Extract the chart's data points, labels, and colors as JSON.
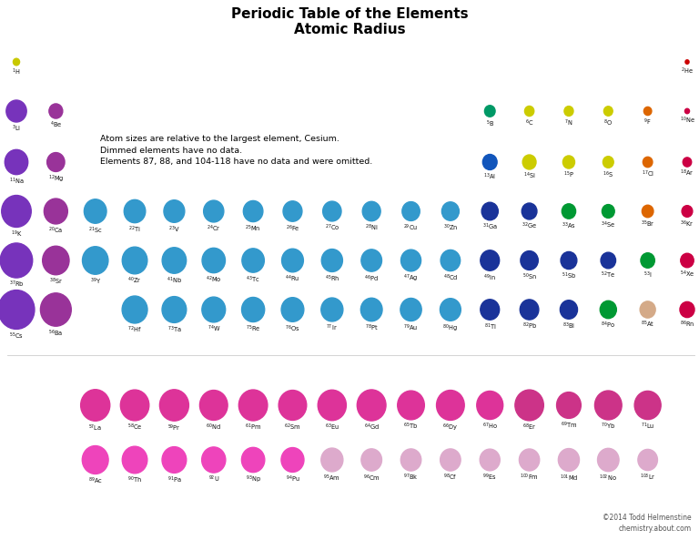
{
  "title1": "Periodic Table of the Elements",
  "title2": "Atomic Radius",
  "note": "Atom sizes are relative to the largest element, Cesium.\nDimmed elements have no data.\nElements 87, 88, and 104-118 have no data and were omitted.",
  "copyright": "©2014 Todd Helmenstine\nchemistry.about.com",
  "background": "#ffffff",
  "max_r": 298,
  "elements": [
    {
      "sym": "H",
      "num": 1,
      "row": 1,
      "col": 1,
      "r": 53,
      "color": "#c8c800"
    },
    {
      "sym": "He",
      "num": 2,
      "row": 1,
      "col": 18,
      "r": 31,
      "color": "#cc0000"
    },
    {
      "sym": "Li",
      "num": 3,
      "row": 2,
      "col": 1,
      "r": 167,
      "color": "#7733bb"
    },
    {
      "sym": "Be",
      "num": 4,
      "row": 2,
      "col": 2,
      "r": 112,
      "color": "#993399"
    },
    {
      "sym": "B",
      "num": 5,
      "row": 2,
      "col": 13,
      "r": 87,
      "color": "#009966"
    },
    {
      "sym": "C",
      "num": 6,
      "row": 2,
      "col": 14,
      "r": 77,
      "color": "#cccc00"
    },
    {
      "sym": "N",
      "num": 7,
      "row": 2,
      "col": 15,
      "r": 75,
      "color": "#cccc00"
    },
    {
      "sym": "O",
      "num": 8,
      "row": 2,
      "col": 16,
      "r": 73,
      "color": "#cccc00"
    },
    {
      "sym": "F",
      "num": 9,
      "row": 2,
      "col": 17,
      "r": 64,
      "color": "#dd6600"
    },
    {
      "sym": "Ne",
      "num": 10,
      "row": 2,
      "col": 18,
      "r": 38,
      "color": "#cc0044"
    },
    {
      "sym": "Na",
      "num": 11,
      "row": 3,
      "col": 1,
      "r": 190,
      "color": "#7733bb"
    },
    {
      "sym": "Mg",
      "num": 12,
      "row": 3,
      "col": 2,
      "r": 145,
      "color": "#993399"
    },
    {
      "sym": "Al",
      "num": 13,
      "row": 3,
      "col": 13,
      "r": 118,
      "color": "#1155bb"
    },
    {
      "sym": "Si",
      "num": 14,
      "row": 3,
      "col": 14,
      "r": 111,
      "color": "#cccc00"
    },
    {
      "sym": "P",
      "num": 15,
      "row": 3,
      "col": 15,
      "r": 98,
      "color": "#cccc00"
    },
    {
      "sym": "S",
      "num": 16,
      "row": 3,
      "col": 16,
      "r": 88,
      "color": "#cccc00"
    },
    {
      "sym": "Cl",
      "num": 17,
      "row": 3,
      "col": 17,
      "r": 79,
      "color": "#dd6600"
    },
    {
      "sym": "Ar",
      "num": 18,
      "row": 3,
      "col": 18,
      "r": 71,
      "color": "#cc0044"
    },
    {
      "sym": "K",
      "num": 19,
      "row": 4,
      "col": 1,
      "r": 243,
      "color": "#7733bb"
    },
    {
      "sym": "Ca",
      "num": 20,
      "row": 4,
      "col": 2,
      "r": 194,
      "color": "#993399"
    },
    {
      "sym": "Sc",
      "num": 21,
      "row": 4,
      "col": 3,
      "r": 184,
      "color": "#3399cc"
    },
    {
      "sym": "Ti",
      "num": 22,
      "row": 4,
      "col": 4,
      "r": 176,
      "color": "#3399cc"
    },
    {
      "sym": "V",
      "num": 23,
      "row": 4,
      "col": 5,
      "r": 171,
      "color": "#3399cc"
    },
    {
      "sym": "Cr",
      "num": 24,
      "row": 4,
      "col": 6,
      "r": 166,
      "color": "#3399cc"
    },
    {
      "sym": "Mn",
      "num": 25,
      "row": 4,
      "col": 7,
      "r": 161,
      "color": "#3399cc"
    },
    {
      "sym": "Fe",
      "num": 26,
      "row": 4,
      "col": 8,
      "r": 156,
      "color": "#3399cc"
    },
    {
      "sym": "Co",
      "num": 27,
      "row": 4,
      "col": 9,
      "r": 152,
      "color": "#3399cc"
    },
    {
      "sym": "Ni",
      "num": 28,
      "row": 4,
      "col": 10,
      "r": 149,
      "color": "#3399cc"
    },
    {
      "sym": "Cu",
      "num": 29,
      "row": 4,
      "col": 11,
      "r": 145,
      "color": "#3399cc"
    },
    {
      "sym": "Zn",
      "num": 30,
      "row": 4,
      "col": 12,
      "r": 142,
      "color": "#3399cc"
    },
    {
      "sym": "Ga",
      "num": 31,
      "row": 4,
      "col": 13,
      "r": 136,
      "color": "#1a3399"
    },
    {
      "sym": "Ge",
      "num": 32,
      "row": 4,
      "col": 14,
      "r": 125,
      "color": "#1a3399"
    },
    {
      "sym": "As",
      "num": 33,
      "row": 4,
      "col": 15,
      "r": 114,
      "color": "#009933"
    },
    {
      "sym": "Se",
      "num": 34,
      "row": 4,
      "col": 16,
      "r": 103,
      "color": "#009933"
    },
    {
      "sym": "Br",
      "num": 35,
      "row": 4,
      "col": 17,
      "r": 94,
      "color": "#dd6600"
    },
    {
      "sym": "Kr",
      "num": 36,
      "row": 4,
      "col": 18,
      "r": 88,
      "color": "#cc0044"
    },
    {
      "sym": "Rb",
      "num": 37,
      "row": 5,
      "col": 1,
      "r": 265,
      "color": "#7733bb"
    },
    {
      "sym": "Sr",
      "num": 38,
      "row": 5,
      "col": 2,
      "r": 219,
      "color": "#993399"
    },
    {
      "sym": "Y",
      "num": 39,
      "row": 5,
      "col": 3,
      "r": 212,
      "color": "#3399cc"
    },
    {
      "sym": "Zr",
      "num": 40,
      "row": 5,
      "col": 4,
      "r": 206,
      "color": "#3399cc"
    },
    {
      "sym": "Nb",
      "num": 41,
      "row": 5,
      "col": 5,
      "r": 198,
      "color": "#3399cc"
    },
    {
      "sym": "Mo",
      "num": 42,
      "row": 5,
      "col": 6,
      "r": 190,
      "color": "#3399cc"
    },
    {
      "sym": "Tc",
      "num": 43,
      "row": 5,
      "col": 7,
      "r": 183,
      "color": "#3399cc"
    },
    {
      "sym": "Ru",
      "num": 44,
      "row": 5,
      "col": 8,
      "r": 178,
      "color": "#3399cc"
    },
    {
      "sym": "Rh",
      "num": 45,
      "row": 5,
      "col": 9,
      "r": 173,
      "color": "#3399cc"
    },
    {
      "sym": "Pd",
      "num": 46,
      "row": 5,
      "col": 10,
      "r": 169,
      "color": "#3399cc"
    },
    {
      "sym": "Ag",
      "num": 47,
      "row": 5,
      "col": 11,
      "r": 165,
      "color": "#3399cc"
    },
    {
      "sym": "Cd",
      "num": 48,
      "row": 5,
      "col": 12,
      "r": 161,
      "color": "#3399cc"
    },
    {
      "sym": "In",
      "num": 49,
      "row": 5,
      "col": 13,
      "r": 156,
      "color": "#1a3399"
    },
    {
      "sym": "Sn",
      "num": 50,
      "row": 5,
      "col": 14,
      "r": 145,
      "color": "#1a3399"
    },
    {
      "sym": "Sb",
      "num": 51,
      "row": 5,
      "col": 15,
      "r": 133,
      "color": "#1a3399"
    },
    {
      "sym": "Te",
      "num": 52,
      "row": 5,
      "col": 16,
      "r": 123,
      "color": "#1a3399"
    },
    {
      "sym": "I",
      "num": 53,
      "row": 5,
      "col": 17,
      "r": 115,
      "color": "#009933"
    },
    {
      "sym": "Xe",
      "num": 54,
      "row": 5,
      "col": 18,
      "r": 108,
      "color": "#cc0044"
    },
    {
      "sym": "Cs",
      "num": 55,
      "row": 6,
      "col": 1,
      "r": 298,
      "color": "#7733bb"
    },
    {
      "sym": "Ba",
      "num": 56,
      "row": 6,
      "col": 2,
      "r": 253,
      "color": "#993399"
    },
    {
      "sym": "Hf",
      "num": 72,
      "row": 6,
      "col": 4,
      "r": 208,
      "color": "#3399cc"
    },
    {
      "sym": "Ta",
      "num": 73,
      "row": 6,
      "col": 5,
      "r": 200,
      "color": "#3399cc"
    },
    {
      "sym": "W",
      "num": 74,
      "row": 6,
      "col": 6,
      "r": 193,
      "color": "#3399cc"
    },
    {
      "sym": "Re",
      "num": 75,
      "row": 6,
      "col": 7,
      "r": 188,
      "color": "#3399cc"
    },
    {
      "sym": "Os",
      "num": 76,
      "row": 6,
      "col": 8,
      "r": 185,
      "color": "#3399cc"
    },
    {
      "sym": "Ir",
      "num": 77,
      "row": 6,
      "col": 9,
      "r": 180,
      "color": "#3399cc"
    },
    {
      "sym": "Pt",
      "num": 78,
      "row": 6,
      "col": 10,
      "r": 177,
      "color": "#3399cc"
    },
    {
      "sym": "Au",
      "num": 79,
      "row": 6,
      "col": 11,
      "r": 174,
      "color": "#3399cc"
    },
    {
      "sym": "Hg",
      "num": 80,
      "row": 6,
      "col": 12,
      "r": 171,
      "color": "#3399cc"
    },
    {
      "sym": "Tl",
      "num": 81,
      "row": 6,
      "col": 13,
      "r": 156,
      "color": "#1a3399"
    },
    {
      "sym": "Pb",
      "num": 82,
      "row": 6,
      "col": 14,
      "r": 154,
      "color": "#1a3399"
    },
    {
      "sym": "Bi",
      "num": 83,
      "row": 6,
      "col": 15,
      "r": 143,
      "color": "#1a3399"
    },
    {
      "sym": "Po",
      "num": 84,
      "row": 6,
      "col": 16,
      "r": 135,
      "color": "#009933"
    },
    {
      "sym": "At",
      "num": 85,
      "row": 6,
      "col": 17,
      "r": 127,
      "color": "#d4aa88"
    },
    {
      "sym": "Rn",
      "num": 86,
      "row": 6,
      "col": 18,
      "r": 120,
      "color": "#cc0044"
    },
    {
      "sym": "La",
      "num": 57,
      "row": 8,
      "col": 3,
      "r": 240,
      "color": "#dd3399"
    },
    {
      "sym": "Ce",
      "num": 58,
      "row": 8,
      "col": 4,
      "r": 235,
      "color": "#dd3399"
    },
    {
      "sym": "Pr",
      "num": 59,
      "row": 8,
      "col": 5,
      "r": 239,
      "color": "#dd3399"
    },
    {
      "sym": "Nd",
      "num": 60,
      "row": 8,
      "col": 6,
      "r": 229,
      "color": "#dd3399"
    },
    {
      "sym": "Pm",
      "num": 61,
      "row": 8,
      "col": 7,
      "r": 236,
      "color": "#dd3399"
    },
    {
      "sym": "Sm",
      "num": 62,
      "row": 8,
      "col": 8,
      "r": 229,
      "color": "#dd3399"
    },
    {
      "sym": "Eu",
      "num": 63,
      "row": 8,
      "col": 9,
      "r": 233,
      "color": "#dd3399"
    },
    {
      "sym": "Gd",
      "num": 64,
      "row": 8,
      "col": 10,
      "r": 237,
      "color": "#dd3399"
    },
    {
      "sym": "Tb",
      "num": 65,
      "row": 8,
      "col": 11,
      "r": 221,
      "color": "#dd3399"
    },
    {
      "sym": "Dy",
      "num": 66,
      "row": 8,
      "col": 12,
      "r": 229,
      "color": "#dd3399"
    },
    {
      "sym": "Ho",
      "num": 67,
      "row": 8,
      "col": 13,
      "r": 216,
      "color": "#dd3399"
    },
    {
      "sym": "Er",
      "num": 68,
      "row": 8,
      "col": 14,
      "r": 235,
      "color": "#cc3388"
    },
    {
      "sym": "Tm",
      "num": 69,
      "row": 8,
      "col": 15,
      "r": 200,
      "color": "#cc3388"
    },
    {
      "sym": "Yb",
      "num": 70,
      "row": 8,
      "col": 16,
      "r": 222,
      "color": "#cc3388"
    },
    {
      "sym": "Lu",
      "num": 71,
      "row": 8,
      "col": 17,
      "r": 217,
      "color": "#cc3388"
    },
    {
      "sym": "Ac",
      "num": 89,
      "row": 9,
      "col": 3,
      "r": 215,
      "color": "#ee44bb"
    },
    {
      "sym": "Th",
      "num": 90,
      "row": 9,
      "col": 4,
      "r": 206,
      "color": "#ee44bb"
    },
    {
      "sym": "Pa",
      "num": 91,
      "row": 9,
      "col": 5,
      "r": 200,
      "color": "#ee44bb"
    },
    {
      "sym": "U",
      "num": 92,
      "row": 9,
      "col": 6,
      "r": 196,
      "color": "#ee44bb"
    },
    {
      "sym": "Np",
      "num": 93,
      "row": 9,
      "col": 7,
      "r": 190,
      "color": "#ee44bb"
    },
    {
      "sym": "Pu",
      "num": 94,
      "row": 9,
      "col": 8,
      "r": 187,
      "color": "#ee44bb"
    },
    {
      "sym": "Am",
      "num": 95,
      "row": 9,
      "col": 9,
      "r": 180,
      "color": "#ddaacc"
    },
    {
      "sym": "Cm",
      "num": 96,
      "row": 9,
      "col": 10,
      "r": 169,
      "color": "#ddaacc"
    },
    {
      "sym": "Bk",
      "num": 97,
      "row": 9,
      "col": 11,
      "r": 168,
      "color": "#ddaacc"
    },
    {
      "sym": "Cf",
      "num": 98,
      "row": 9,
      "col": 12,
      "r": 168,
      "color": "#ddaacc"
    },
    {
      "sym": "Es",
      "num": 99,
      "row": 9,
      "col": 13,
      "r": 165,
      "color": "#ddaacc"
    },
    {
      "sym": "Fm",
      "num": 100,
      "row": 9,
      "col": 14,
      "r": 167,
      "color": "#ddaacc"
    },
    {
      "sym": "Md",
      "num": 101,
      "row": 9,
      "col": 15,
      "r": 173,
      "color": "#ddaacc"
    },
    {
      "sym": "No",
      "num": 102,
      "row": 9,
      "col": 16,
      "r": 176,
      "color": "#ddaacc"
    },
    {
      "sym": "Lr",
      "num": 103,
      "row": 9,
      "col": 17,
      "r": 161,
      "color": "#ddaacc"
    }
  ]
}
